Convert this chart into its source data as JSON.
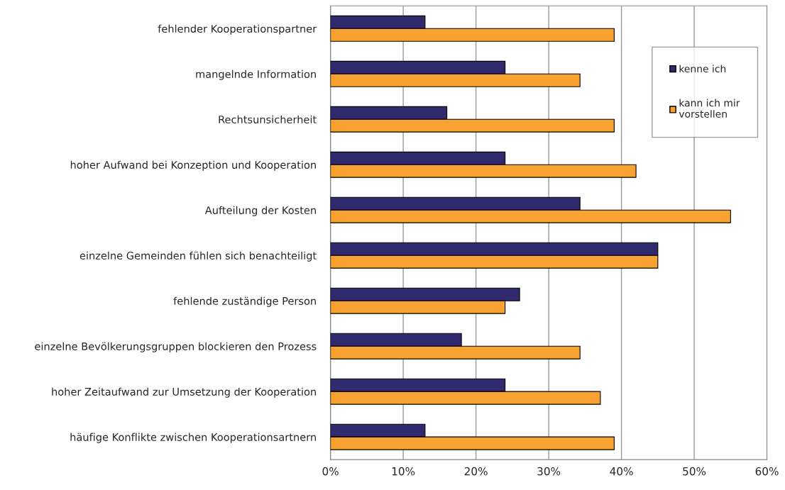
{
  "chart_data": {
    "type": "bar",
    "orientation": "horizontal",
    "categories": [
      "fehlender Kooperationspartner",
      "mangelnde Information",
      "Rechtsunsicherheit",
      "hoher Aufwand bei Konzeption und Kooperation",
      "Aufteilung der Kosten",
      "einzelne Gemeinden fühlen sich benachteiligt",
      "fehlende zuständige Person",
      "einzelne Bevölkerungsgruppen blockieren den Prozess",
      "hoher Zeitaufwand zur Umsetzung der Kooperation",
      "häufige Konflikte zwischen Kooperationsartnern"
    ],
    "series": [
      {
        "name": "kenne ich",
        "color": "#30296e",
        "values": [
          13,
          24,
          16,
          24,
          34.3,
          45,
          26,
          18,
          24,
          13
        ]
      },
      {
        "name": "kann ich mir\nvorstellen",
        "color": "#f8a232",
        "values": [
          39,
          34.3,
          39,
          42,
          55,
          45,
          24,
          34.3,
          37.1,
          39
        ]
      }
    ],
    "xlim": [
      0,
      60
    ],
    "xticks": [
      {
        "value": 0,
        "label": "0%"
      },
      {
        "value": 10,
        "label": "10%"
      },
      {
        "value": 20,
        "label": "20%"
      },
      {
        "value": 30,
        "label": "30%"
      },
      {
        "value": 40,
        "label": "40%"
      },
      {
        "value": 50,
        "label": "50%"
      },
      {
        "value": 60,
        "label": "60%"
      }
    ],
    "grid": "x",
    "legend": "top right"
  }
}
